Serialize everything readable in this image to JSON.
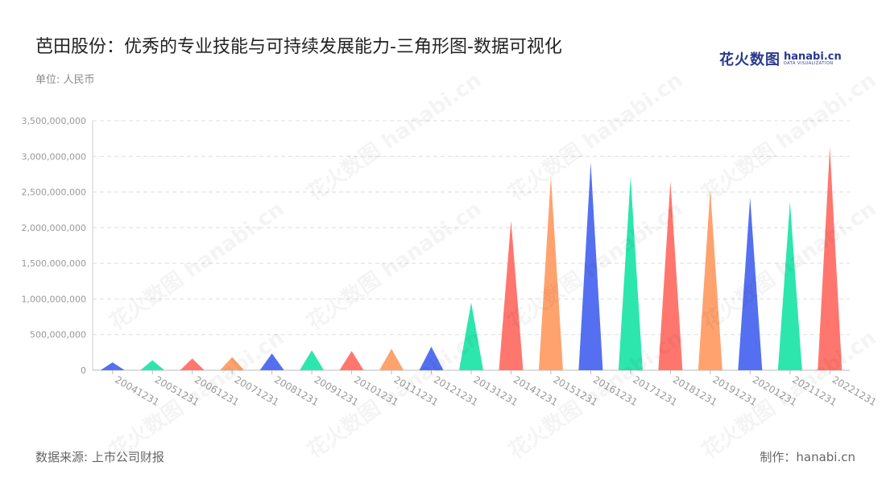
{
  "title": "芭田股份：优秀的专业技能与可持续发展能力-三角形图-数据可视化",
  "unit": "单位: 人民币",
  "source": "数据来源: 上市公司财报",
  "maker": "制作：hanabi.cn",
  "logo": {
    "cn": "花火数图",
    "en": "hanabi.cn",
    "sub": "DATA VISUALIZATION"
  },
  "watermark_text": "花火数图 hanabi.cn",
  "colors": [
    "#5470f0",
    "#2de6ad",
    "#ff766e",
    "#ffa26e"
  ],
  "chart_data": {
    "type": "bar",
    "bar_shape": "triangle",
    "categories": [
      "20041231",
      "20051231",
      "20061231",
      "20071231",
      "20081231",
      "20091231",
      "20101231",
      "20111231",
      "20121231",
      "20131231",
      "20141231",
      "20151231",
      "20161231",
      "20171231",
      "20181231",
      "20191231",
      "20201231",
      "20211231",
      "20221231"
    ],
    "values": [
      110000000,
      140000000,
      165000000,
      185000000,
      235000000,
      280000000,
      270000000,
      300000000,
      330000000,
      950000000,
      2100000000,
      2720000000,
      2910000000,
      2720000000,
      2650000000,
      2540000000,
      2420000000,
      2360000000,
      3130000000
    ],
    "ylim": [
      0,
      3500000000
    ],
    "yticks": [
      0,
      500000000,
      1000000000,
      1500000000,
      2000000000,
      2500000000,
      3000000000,
      3500000000
    ],
    "ytick_labels": [
      "0",
      "500,000,000",
      "1,000,000,000",
      "1,500,000,000",
      "2,000,000,000",
      "2,500,000,000",
      "3,000,000,000",
      "3,500,000,000"
    ],
    "grid": true
  }
}
